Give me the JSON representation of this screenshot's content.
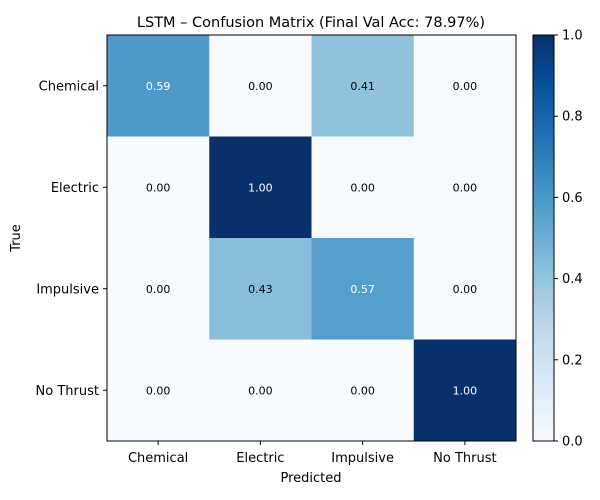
{
  "chart_data": {
    "type": "heatmap",
    "title": "LSTM – Confusion Matrix (Final Val Acc: 78.97%)",
    "xlabel": "Predicted",
    "ylabel": "True",
    "x_categories": [
      "Chemical",
      "Electric",
      "Impulsive",
      "No Thrust"
    ],
    "y_categories": [
      "Chemical",
      "Electric",
      "Impulsive",
      "No Thrust"
    ],
    "values": [
      [
        0.59,
        0.0,
        0.41,
        0.0
      ],
      [
        0.0,
        1.0,
        0.0,
        0.0
      ],
      [
        0.0,
        0.43,
        0.57,
        0.0
      ],
      [
        0.0,
        0.0,
        0.0,
        1.0
      ]
    ],
    "colorscale": "Blues",
    "clim": [
      0.0,
      1.0
    ],
    "colorbar_ticks": [
      "0.0",
      "0.2",
      "0.4",
      "0.6",
      "0.8",
      "1.0"
    ]
  }
}
